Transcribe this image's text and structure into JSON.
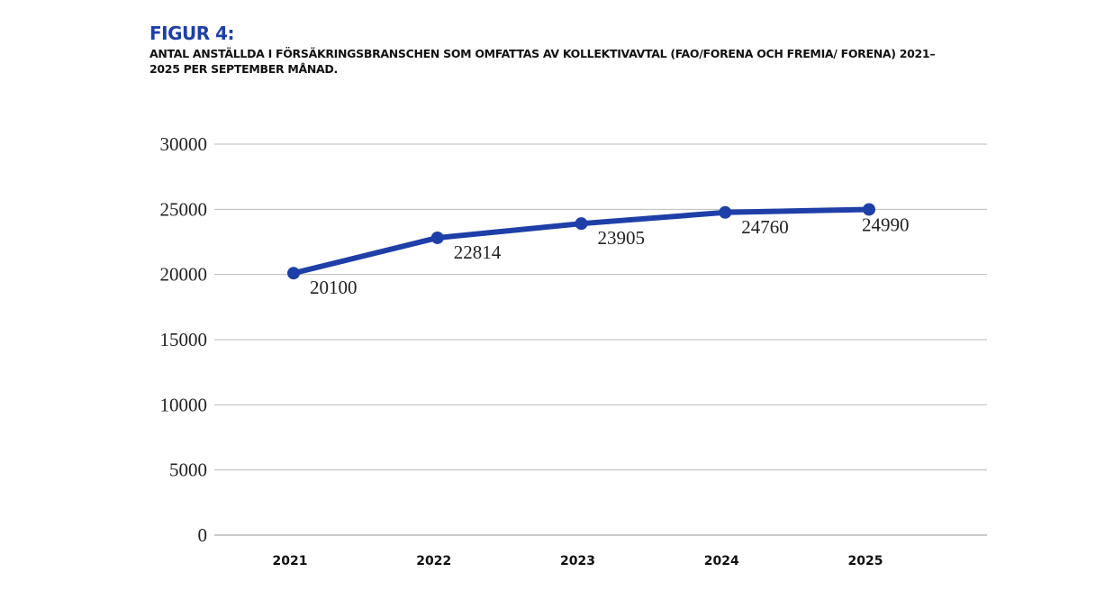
{
  "chart_data": {
    "type": "line",
    "title": "FIGUR 4:",
    "subtitle": "ANTAL ANSTÄLLDA I FÖRSÄKRINGSBRANSCHEN SOM OMFATTAS AV KOLLEKTIVAVTAL (FAO/FORENA OCH FREMIA/ FORENA) 2021–2025 PER SEPTEMBER MÅNAD.",
    "xlabel": "",
    "ylabel": "",
    "categories": [
      "2021",
      "2022",
      "2023",
      "2024",
      "2025"
    ],
    "series": [
      {
        "name": "Antal anställda",
        "values": [
          20100,
          22814,
          23905,
          24760,
          24990
        ],
        "color": "#1f3fa8"
      }
    ],
    "ylim": [
      0,
      30000
    ],
    "yticks": [
      0,
      5000,
      10000,
      15000,
      20000,
      25000,
      30000
    ],
    "grid": true,
    "legend": "none"
  }
}
